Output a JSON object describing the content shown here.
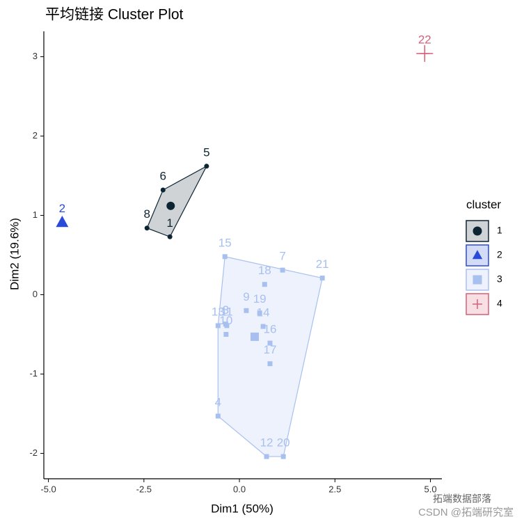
{
  "chart_data": {
    "type": "cluster",
    "title": "平均链接 Cluster Plot",
    "x_label": "Dim1 (50%)",
    "y_label": "Dim2 (19.6%)",
    "xlim": [
      -5.12,
      5.3
    ],
    "ylim": [
      -2.32,
      3.32
    ],
    "xticks": [
      {
        "value": -5,
        "label": "-5.0"
      },
      {
        "value": -2.5,
        "label": "-2.5"
      },
      {
        "value": 0,
        "label": "0.0"
      },
      {
        "value": 2.5,
        "label": "2.5"
      },
      {
        "value": 5,
        "label": "5.0"
      }
    ],
    "yticks": [
      -2,
      -1,
      0,
      1,
      2,
      3
    ],
    "legend_title": "cluster",
    "series": [
      {
        "name": "1",
        "color": "#0d2433",
        "shape": "circle",
        "labels": [
          "5",
          "6",
          "8",
          "1"
        ],
        "x": [
          -0.86,
          -2.0,
          -2.42,
          -1.82
        ],
        "y": [
          1.62,
          1.32,
          0.84,
          0.73
        ],
        "center": [
          -1.8,
          1.12
        ]
      },
      {
        "name": "2",
        "color": "#2a4bd7",
        "shape": "triangle",
        "labels": [
          "2"
        ],
        "x": [
          -4.64
        ],
        "y": [
          0.91
        ],
        "center": [
          -4.64,
          0.91
        ]
      },
      {
        "name": "3",
        "color": "#a8c0f0",
        "shape": "square",
        "labels": [
          "15",
          "7",
          "21",
          "18",
          "9",
          "19",
          "14",
          "16",
          "17",
          "13",
          "11",
          "3",
          "10",
          "4",
          "12",
          "20"
        ],
        "x": [
          -0.38,
          1.13,
          2.17,
          0.66,
          0.18,
          0.53,
          0.62,
          0.8,
          0.8,
          -0.56,
          -0.33,
          -0.36,
          -0.35,
          -0.56,
          0.71,
          1.15
        ],
        "y": [
          0.48,
          0.31,
          0.21,
          0.13,
          -0.2,
          -0.23,
          -0.4,
          -0.61,
          -0.87,
          -0.39,
          -0.39,
          -0.37,
          -0.5,
          -1.53,
          -2.04,
          -2.04
        ],
        "center": [
          0.4,
          -0.53
        ]
      },
      {
        "name": "4",
        "color": "#d6607a",
        "shape": "plus",
        "labels": [
          "22"
        ],
        "x": [
          4.85
        ],
        "y": [
          3.04
        ],
        "center": [
          4.85,
          3.04
        ]
      }
    ],
    "annotations": [
      "拓端数据部落",
      "CSDN @拓端研究室"
    ]
  }
}
